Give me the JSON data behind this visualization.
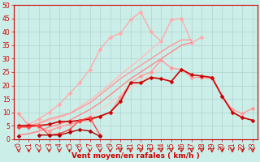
{
  "title": "",
  "xlabel": "Vent moyen/en rafales ( km/h )",
  "background_color": "#cceee8",
  "grid_color": "#aacccc",
  "x_values": [
    0,
    1,
    2,
    3,
    4,
    5,
    6,
    7,
    8,
    9,
    10,
    11,
    12,
    13,
    14,
    15,
    16,
    17,
    18,
    19,
    20,
    21,
    22,
    23
  ],
  "series": [
    {
      "y": [
        4.5,
        5.5,
        7.5,
        10.0,
        13.0,
        17.0,
        21.0,
        26.0,
        33.5,
        38.0,
        39.5,
        44.5,
        47.5,
        40.0,
        36.5,
        44.5,
        45.0,
        36.0,
        38.0,
        null,
        null,
        null,
        null,
        null
      ],
      "color": "#ffaaaa",
      "lw": 1.0,
      "marker": "D",
      "ms": 2.5,
      "zorder": 2
    },
    {
      "y": [
        4.5,
        4.5,
        5.5,
        7.0,
        8.0,
        9.5,
        12.0,
        14.5,
        17.5,
        20.5,
        24.0,
        27.0,
        30.0,
        33.5,
        36.5,
        null,
        null,
        null,
        null,
        null,
        null,
        null,
        null,
        null
      ],
      "color": "#ffbbbb",
      "lw": 1.0,
      "marker": null,
      "ms": 0,
      "zorder": 2
    },
    {
      "y": [
        4.5,
        5.0,
        6.0,
        7.5,
        8.5,
        9.5,
        11.5,
        13.5,
        16.5,
        19.5,
        22.5,
        25.0,
        27.5,
        30.0,
        32.5,
        35.0,
        37.0,
        37.0,
        null,
        null,
        null,
        null,
        null,
        null
      ],
      "color": "#ff9999",
      "lw": 1.0,
      "marker": null,
      "ms": 0,
      "zorder": 2
    },
    {
      "y": [
        1.5,
        2.0,
        2.5,
        3.5,
        4.5,
        5.5,
        7.0,
        8.5,
        11.0,
        13.5,
        16.5,
        19.0,
        21.5,
        24.0,
        26.5,
        null,
        null,
        null,
        null,
        null,
        null,
        null,
        null,
        null
      ],
      "color": "#ffcccc",
      "lw": 1.0,
      "marker": null,
      "ms": 0,
      "zorder": 2
    },
    {
      "y": [
        1.5,
        2.0,
        3.0,
        4.5,
        5.5,
        7.0,
        9.0,
        11.0,
        13.5,
        16.5,
        19.5,
        22.5,
        25.0,
        27.5,
        30.0,
        32.5,
        35.0,
        36.0,
        null,
        null,
        null,
        null,
        null,
        null
      ],
      "color": "#ff8888",
      "lw": 1.0,
      "marker": null,
      "ms": 0,
      "zorder": 2
    },
    {
      "y": [
        9.5,
        5.0,
        4.5,
        3.0,
        4.5,
        5.5,
        6.5,
        7.0,
        8.5,
        10.0,
        15.5,
        21.0,
        23.5,
        25.0,
        29.5,
        26.5,
        26.0,
        23.0,
        23.0,
        22.5,
        16.0,
        11.0,
        9.5,
        11.5
      ],
      "color": "#ff9999",
      "lw": 1.0,
      "marker": "D",
      "ms": 2.5,
      "zorder": 3
    },
    {
      "y": [
        5.0,
        5.0,
        5.0,
        5.5,
        6.5,
        6.5,
        7.0,
        7.5,
        8.5,
        10.0,
        14.0,
        21.0,
        21.0,
        23.0,
        22.5,
        21.5,
        26.0,
        24.0,
        23.5,
        23.0,
        16.0,
        10.0,
        8.0,
        7.0
      ],
      "color": "#cc0000",
      "lw": 1.2,
      "marker": "D",
      "ms": 2.5,
      "zorder": 4
    },
    {
      "y": [
        4.5,
        4.5,
        5.0,
        1.5,
        2.0,
        3.5,
        7.0,
        8.0,
        1.5,
        null,
        null,
        null,
        null,
        null,
        null,
        null,
        null,
        null,
        null,
        null,
        null,
        null,
        null,
        null
      ],
      "color": "#ff4444",
      "lw": 1.0,
      "marker": "D",
      "ms": 2.5,
      "zorder": 4
    },
    {
      "y": [
        1.0,
        null,
        1.5,
        1.5,
        1.5,
        2.5,
        3.5,
        3.0,
        1.0,
        null,
        null,
        null,
        null,
        null,
        null,
        null,
        null,
        null,
        null,
        null,
        null,
        null,
        null,
        null
      ],
      "color": "#aa0000",
      "lw": 1.0,
      "marker": "D",
      "ms": 2.5,
      "zorder": 4
    }
  ],
  "ylim": [
    0,
    50
  ],
  "yticks": [
    0,
    5,
    10,
    15,
    20,
    25,
    30,
    35,
    40,
    45,
    50
  ],
  "xlim": [
    -0.5,
    23.5
  ],
  "tick_fontsize": 5.5,
  "xlabel_fontsize": 6.5
}
